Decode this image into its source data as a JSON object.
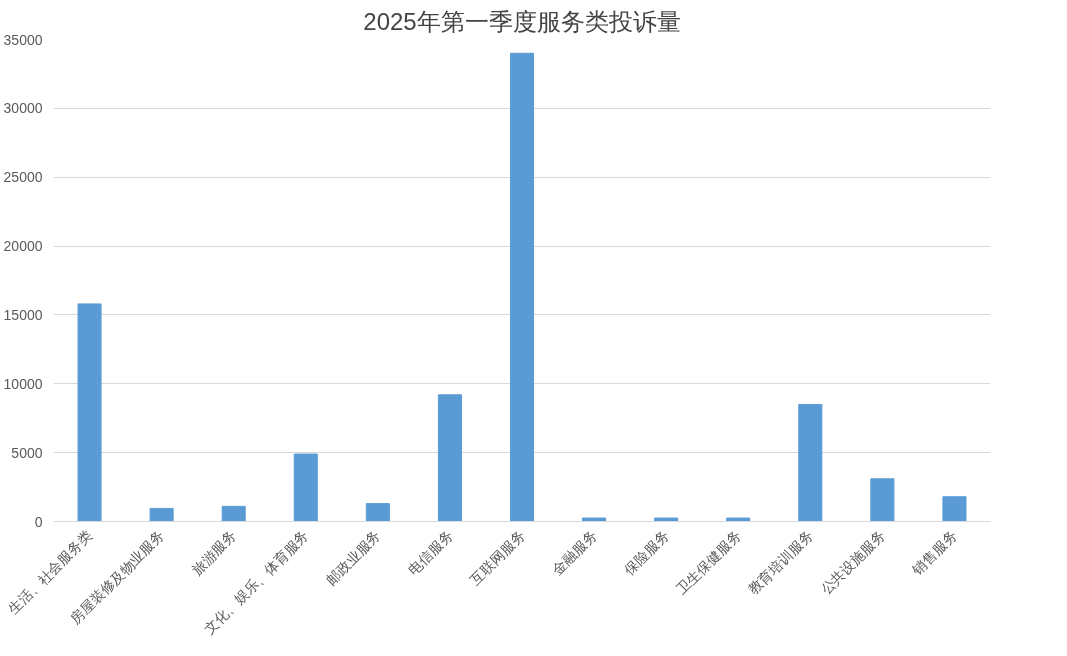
{
  "chart_data": {
    "type": "bar",
    "title": "2025年第一季度服务类投诉量",
    "categories": [
      "生活、社会服务类",
      "房屋装修及物业服务",
      "旅游服务",
      "文化、娱乐、体育服务",
      "邮政业服务",
      "电信服务",
      "互联网服务",
      "金融服务",
      "保险服务",
      "卫生保健服务",
      "教育培训服务",
      "公共设施服务",
      "销售服务"
    ],
    "values": [
      15800,
      950,
      1100,
      4900,
      1300,
      9200,
      34000,
      250,
      250,
      250,
      8500,
      3100,
      1800
    ],
    "color": "#5b9bd5",
    "ylim": [
      0,
      35000
    ],
    "yticks": [
      0,
      5000,
      10000,
      15000,
      20000,
      25000,
      30000,
      35000
    ],
    "grid": "y"
  }
}
